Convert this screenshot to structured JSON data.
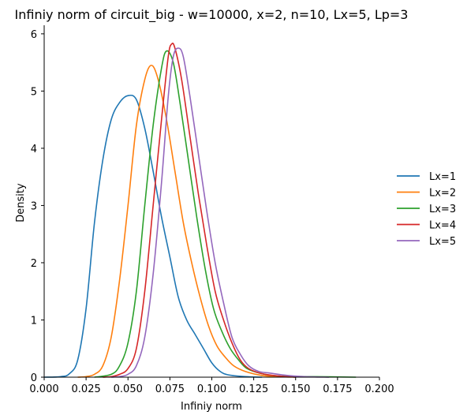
{
  "chart_data": {
    "type": "line",
    "title": "Infiniy norm of circuit_big - w=10000, x=2, n=10, Lx=5, Lp=3",
    "xlabel": "Infiniy norm",
    "ylabel": "Density",
    "xlim": [
      0.0,
      0.2
    ],
    "ylim": [
      0,
      6.15
    ],
    "x_ticks": [
      "0.000",
      "0.025",
      "0.050",
      "0.075",
      "0.100",
      "0.125",
      "0.150",
      "0.175",
      "0.200"
    ],
    "y_ticks": [
      "0",
      "1",
      "2",
      "3",
      "4",
      "5",
      "6"
    ],
    "grid": false,
    "legend_position": "right",
    "series": [
      {
        "name": "Lx=1",
        "color": "#1f77b4",
        "points": [
          [
            0.0,
            0.0
          ],
          [
            0.01,
            0.01
          ],
          [
            0.015,
            0.06
          ],
          [
            0.02,
            0.3
          ],
          [
            0.025,
            1.2
          ],
          [
            0.03,
            2.7
          ],
          [
            0.035,
            3.8
          ],
          [
            0.04,
            4.5
          ],
          [
            0.045,
            4.8
          ],
          [
            0.05,
            4.92
          ],
          [
            0.055,
            4.85
          ],
          [
            0.06,
            4.35
          ],
          [
            0.065,
            3.6
          ],
          [
            0.07,
            2.8
          ],
          [
            0.075,
            2.1
          ],
          [
            0.08,
            1.4
          ],
          [
            0.085,
            1.0
          ],
          [
            0.09,
            0.75
          ],
          [
            0.095,
            0.5
          ],
          [
            0.1,
            0.25
          ],
          [
            0.105,
            0.1
          ],
          [
            0.11,
            0.04
          ],
          [
            0.12,
            0.01
          ],
          [
            0.13,
            0.0
          ]
        ]
      },
      {
        "name": "Lx=2",
        "color": "#ff7f0e",
        "points": [
          [
            0.02,
            0.0
          ],
          [
            0.025,
            0.01
          ],
          [
            0.03,
            0.05
          ],
          [
            0.035,
            0.2
          ],
          [
            0.04,
            0.7
          ],
          [
            0.045,
            1.7
          ],
          [
            0.05,
            3.0
          ],
          [
            0.055,
            4.4
          ],
          [
            0.06,
            5.2
          ],
          [
            0.064,
            5.45
          ],
          [
            0.068,
            5.2
          ],
          [
            0.073,
            4.5
          ],
          [
            0.078,
            3.6
          ],
          [
            0.083,
            2.7
          ],
          [
            0.088,
            2.0
          ],
          [
            0.093,
            1.4
          ],
          [
            0.098,
            0.9
          ],
          [
            0.103,
            0.55
          ],
          [
            0.108,
            0.35
          ],
          [
            0.113,
            0.2
          ],
          [
            0.12,
            0.1
          ],
          [
            0.13,
            0.03
          ],
          [
            0.14,
            0.01
          ],
          [
            0.15,
            0.0
          ]
        ]
      },
      {
        "name": "Lx=3",
        "color": "#2ca02c",
        "points": [
          [
            0.03,
            0.0
          ],
          [
            0.04,
            0.05
          ],
          [
            0.045,
            0.2
          ],
          [
            0.05,
            0.6
          ],
          [
            0.055,
            1.5
          ],
          [
            0.06,
            3.0
          ],
          [
            0.065,
            4.4
          ],
          [
            0.07,
            5.4
          ],
          [
            0.073,
            5.7
          ],
          [
            0.077,
            5.5
          ],
          [
            0.081,
            4.8
          ],
          [
            0.086,
            3.8
          ],
          [
            0.091,
            2.8
          ],
          [
            0.096,
            1.9
          ],
          [
            0.101,
            1.2
          ],
          [
            0.106,
            0.8
          ],
          [
            0.111,
            0.5
          ],
          [
            0.116,
            0.3
          ],
          [
            0.121,
            0.15
          ],
          [
            0.13,
            0.06
          ],
          [
            0.14,
            0.02
          ],
          [
            0.16,
            0.01
          ],
          [
            0.186,
            0.0
          ]
        ]
      },
      {
        "name": "Lx=4",
        "color": "#d62728",
        "points": [
          [
            0.035,
            0.0
          ],
          [
            0.04,
            0.01
          ],
          [
            0.045,
            0.05
          ],
          [
            0.05,
            0.15
          ],
          [
            0.055,
            0.5
          ],
          [
            0.06,
            1.5
          ],
          [
            0.065,
            3.0
          ],
          [
            0.07,
            4.5
          ],
          [
            0.074,
            5.6
          ],
          [
            0.076,
            5.82
          ],
          [
            0.078,
            5.75
          ],
          [
            0.082,
            5.2
          ],
          [
            0.087,
            4.2
          ],
          [
            0.092,
            3.2
          ],
          [
            0.097,
            2.3
          ],
          [
            0.102,
            1.5
          ],
          [
            0.107,
            1.0
          ],
          [
            0.112,
            0.6
          ],
          [
            0.117,
            0.3
          ],
          [
            0.122,
            0.15
          ],
          [
            0.13,
            0.06
          ],
          [
            0.14,
            0.02
          ],
          [
            0.15,
            0.0
          ]
        ]
      },
      {
        "name": "Lx=5",
        "color": "#9467bd",
        "points": [
          [
            0.04,
            0.0
          ],
          [
            0.045,
            0.01
          ],
          [
            0.05,
            0.05
          ],
          [
            0.055,
            0.2
          ],
          [
            0.06,
            0.7
          ],
          [
            0.065,
            1.8
          ],
          [
            0.07,
            3.4
          ],
          [
            0.074,
            4.9
          ],
          [
            0.077,
            5.6
          ],
          [
            0.08,
            5.75
          ],
          [
            0.083,
            5.6
          ],
          [
            0.087,
            4.9
          ],
          [
            0.092,
            3.9
          ],
          [
            0.097,
            2.9
          ],
          [
            0.102,
            2.0
          ],
          [
            0.107,
            1.3
          ],
          [
            0.112,
            0.7
          ],
          [
            0.117,
            0.4
          ],
          [
            0.122,
            0.2
          ],
          [
            0.128,
            0.1
          ],
          [
            0.135,
            0.07
          ],
          [
            0.145,
            0.03
          ],
          [
            0.155,
            0.01
          ],
          [
            0.17,
            0.0
          ]
        ]
      }
    ]
  }
}
